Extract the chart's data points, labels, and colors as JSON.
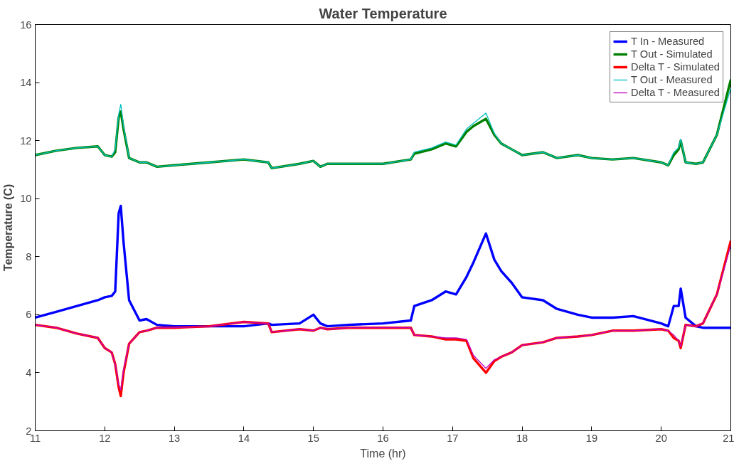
{
  "chart_data": {
    "type": "line",
    "title": "Water Temperature",
    "xlabel": "Time (hr)",
    "ylabel": "Temperature (C)",
    "x": [
      11,
      11.3,
      11.6,
      11.9,
      12.0,
      12.1,
      12.15,
      12.2,
      12.23,
      12.27,
      12.35,
      12.5,
      12.6,
      12.75,
      13,
      13.5,
      14,
      14.35,
      14.4,
      14.8,
      15.0,
      15.1,
      15.2,
      15.5,
      16,
      16.4,
      16.45,
      16.7,
      16.9,
      17.05,
      17.2,
      17.3,
      17.48,
      17.6,
      17.7,
      17.85,
      18.0,
      18.3,
      18.5,
      18.8,
      19,
      19.3,
      19.6,
      20.0,
      20.1,
      20.18,
      20.25,
      20.28,
      20.35,
      20.5,
      20.6,
      20.8,
      21
    ],
    "series": [
      {
        "name": "T In - Measured",
        "color": "#0000ff",
        "values": [
          5.9,
          6.1,
          6.3,
          6.5,
          6.6,
          6.65,
          6.8,
          9.5,
          9.75,
          8.5,
          6.5,
          5.8,
          5.85,
          5.65,
          5.6,
          5.6,
          5.6,
          5.7,
          5.65,
          5.7,
          6.0,
          5.7,
          5.6,
          5.65,
          5.7,
          5.8,
          6.3,
          6.5,
          6.8,
          6.7,
          7.3,
          7.8,
          8.8,
          7.9,
          7.5,
          7.1,
          6.6,
          6.5,
          6.2,
          6.0,
          5.9,
          5.9,
          5.95,
          5.7,
          5.6,
          6.3,
          6.3,
          6.9,
          5.9,
          5.6,
          5.55,
          5.55,
          5.55
        ]
      },
      {
        "name": "T Out - Simulated",
        "color": "#008000",
        "values": [
          11.5,
          11.65,
          11.75,
          11.8,
          11.5,
          11.45,
          11.6,
          12.8,
          13.0,
          12.4,
          11.4,
          11.25,
          11.25,
          11.1,
          11.15,
          11.25,
          11.35,
          11.25,
          11.05,
          11.2,
          11.3,
          11.1,
          11.2,
          11.2,
          11.2,
          11.35,
          11.55,
          11.7,
          11.9,
          11.8,
          12.3,
          12.5,
          12.75,
          12.2,
          11.9,
          11.7,
          11.5,
          11.6,
          11.4,
          11.5,
          11.4,
          11.35,
          11.4,
          11.25,
          11.15,
          11.5,
          11.7,
          12.0,
          11.25,
          11.2,
          11.25,
          12.2,
          14.1
        ]
      },
      {
        "name": "Delta T - Simulated",
        "color": "#ff0000",
        "values": [
          5.65,
          5.55,
          5.35,
          5.2,
          4.85,
          4.7,
          4.3,
          3.5,
          3.2,
          4.0,
          5.0,
          5.4,
          5.45,
          5.55,
          5.55,
          5.6,
          5.75,
          5.7,
          5.4,
          5.5,
          5.45,
          5.55,
          5.5,
          5.55,
          5.55,
          5.55,
          5.3,
          5.25,
          5.15,
          5.15,
          5.1,
          4.5,
          4.0,
          4.4,
          4.55,
          4.7,
          4.95,
          5.05,
          5.2,
          5.25,
          5.3,
          5.45,
          5.45,
          5.5,
          5.45,
          5.2,
          5.1,
          4.85,
          5.65,
          5.6,
          5.7,
          6.7,
          8.55
        ]
      },
      {
        "name": "T Out - Measured",
        "color": "#00bfbf",
        "values": [
          11.5,
          11.65,
          11.75,
          11.8,
          11.5,
          11.45,
          11.7,
          12.9,
          13.25,
          12.5,
          11.4,
          11.25,
          11.25,
          11.1,
          11.15,
          11.25,
          11.35,
          11.25,
          11.05,
          11.2,
          11.3,
          11.1,
          11.2,
          11.2,
          11.2,
          11.35,
          11.6,
          11.75,
          11.95,
          11.85,
          12.4,
          12.6,
          12.95,
          12.25,
          11.9,
          11.7,
          11.5,
          11.6,
          11.4,
          11.5,
          11.4,
          11.35,
          11.4,
          11.25,
          11.15,
          11.6,
          11.75,
          12.05,
          11.25,
          11.2,
          11.25,
          12.2,
          13.8
        ]
      },
      {
        "name": "Delta T - Measured",
        "color": "#bf00bf",
        "values": [
          5.65,
          5.55,
          5.35,
          5.2,
          4.85,
          4.7,
          4.3,
          3.6,
          3.4,
          4.1,
          5.0,
          5.4,
          5.45,
          5.55,
          5.55,
          5.6,
          5.75,
          5.7,
          5.4,
          5.5,
          5.45,
          5.55,
          5.5,
          5.55,
          5.55,
          5.55,
          5.3,
          5.25,
          5.2,
          5.2,
          5.15,
          4.6,
          4.15,
          4.45,
          4.55,
          4.7,
          4.95,
          5.05,
          5.2,
          5.25,
          5.3,
          5.45,
          5.45,
          5.5,
          5.45,
          5.3,
          5.1,
          4.9,
          5.65,
          5.6,
          5.7,
          6.7,
          8.4
        ]
      }
    ],
    "xlim": [
      11,
      21
    ],
    "ylim": [
      2,
      16
    ],
    "xticks": [
      11,
      12,
      13,
      14,
      15,
      16,
      17,
      18,
      19,
      20,
      21
    ],
    "yticks": [
      2,
      4,
      6,
      8,
      10,
      12,
      14,
      16
    ],
    "grid": false,
    "legend": "top right",
    "marker": "none",
    "line_style": "solid"
  }
}
